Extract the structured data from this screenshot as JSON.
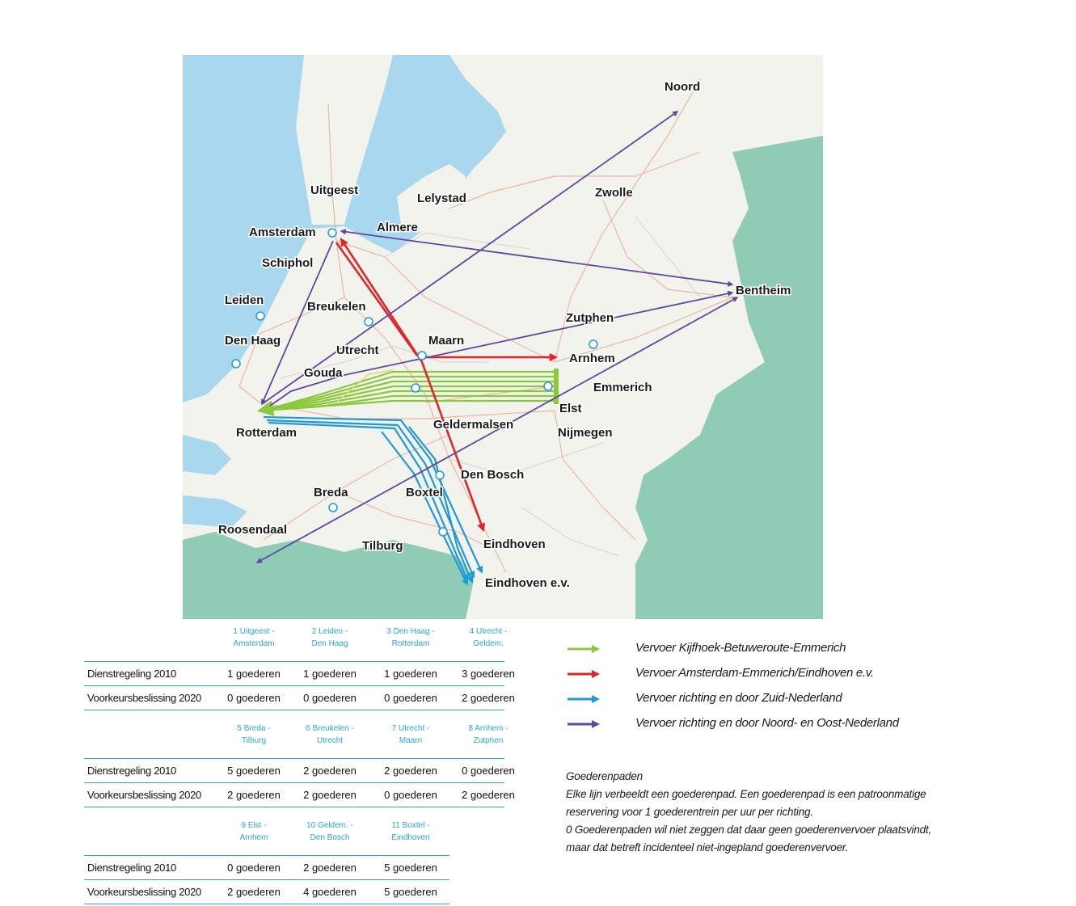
{
  "map": {
    "cities": {
      "noord": "Noord",
      "uitgeest": "Uitgeest",
      "lelystad": "Lelystad",
      "zwolle": "Zwolle",
      "amsterdam": "Amsterdam",
      "almere": "Almere",
      "schiphol": "Schiphol",
      "bentheim": "Bentheim",
      "leiden": "Leiden",
      "breukelen": "Breukelen",
      "zutphen": "Zutphen",
      "den_haag": "Den Haag",
      "maarn": "Maarn",
      "utrecht": "Utrecht",
      "arnhem": "Arnhem",
      "gouda": "Gouda",
      "emmerich": "Emmerich",
      "elst": "Elst",
      "rotterdam": "Rotterdam",
      "geldermalsen": "Geldermalsen",
      "nijmegen": "Nijmegen",
      "den_bosch": "Den Bosch",
      "breda": "Breda",
      "boxtel": "Boxtel",
      "roosendaal": "Roosendaal",
      "tilburg": "Tilburg",
      "eindhoven": "Eindhoven",
      "eindhoven_ev": "Eindhoven e.v."
    },
    "colors": {
      "water": "#a9d8ee",
      "land": "#f3f3ee",
      "foreign": "#8fcbb5",
      "green_route": "#8cc83c",
      "red_route": "#e1262b",
      "blue_route": "#1f9ad6",
      "purple_route": "#5b4a9e"
    }
  },
  "tables": [
    {
      "headers": [
        "1 Uitgeest -\nAmsterdam",
        "2 Leiden -\nDen Haag",
        "3 Den Haag -\nRotterdam",
        "4 Utrecht -\nGeldem."
      ],
      "rows": [
        {
          "label": "Dienstregeling 2010",
          "values": [
            "1 goederen",
            "1 goederen",
            "1 goederen",
            "3 goederen"
          ]
        },
        {
          "label": "Voorkeursbeslissing 2020",
          "values": [
            "0 goederen",
            "0 goederen",
            "0 goederen",
            "2 goederen"
          ]
        }
      ]
    },
    {
      "headers": [
        "5 Breda -\nTilburg",
        "6 Breukelen -\nUtrecht",
        "7 Utrecht -\nMaarn",
        "8 Arnhem -\nZutphen"
      ],
      "rows": [
        {
          "label": "Dienstregeling 2010",
          "values": [
            "5 goederen",
            "2 goederen",
            "2 goederen",
            "0 goederen"
          ]
        },
        {
          "label": "Voorkeursbeslissing 2020",
          "values": [
            "2 goederen",
            "2 goederen",
            "0 goederen",
            "2 goederen"
          ]
        }
      ]
    },
    {
      "headers": [
        "9 Elst -\nArnhem",
        "10 Geldem. -\nDen Bosch",
        "11 Boxtel -\nEindhoven"
      ],
      "rows": [
        {
          "label": "Dienstregeling 2010",
          "values": [
            "0 goederen",
            "2 goederen",
            "5 goederen"
          ]
        },
        {
          "label": "Voorkeursbeslissing 2020",
          "values": [
            "2 goederen",
            "4 goederen",
            "5 goederen"
          ]
        }
      ]
    }
  ],
  "legend": {
    "items": [
      {
        "label": "Vervoer Kijfhoek-Betuweroute-Emmerich",
        "color": "#8cc83c"
      },
      {
        "label": "Vervoer Amsterdam-Emmerich/Eindhoven e.v.",
        "color": "#e1262b"
      },
      {
        "label": "Vervoer richting en door Zuid-Nederland",
        "color": "#1f9ad6"
      },
      {
        "label": "Vervoer richting en door Noord- en Oost-Nederland",
        "color": "#5b4a9e"
      }
    ]
  },
  "note": {
    "title": "Goederenpaden",
    "line1": "Elke lijn verbeeldt een goederenpad. Een goederenpad is een patroonmatige",
    "line2": "reservering voor 1 goederentrein per uur per richting.",
    "line3": "0 Goederenpaden wil niet zeggen dat daar geen goederenvervoer plaatsvindt,",
    "line4": "maar dat betreft incidenteel niet-ingepland goederenvervoer."
  }
}
